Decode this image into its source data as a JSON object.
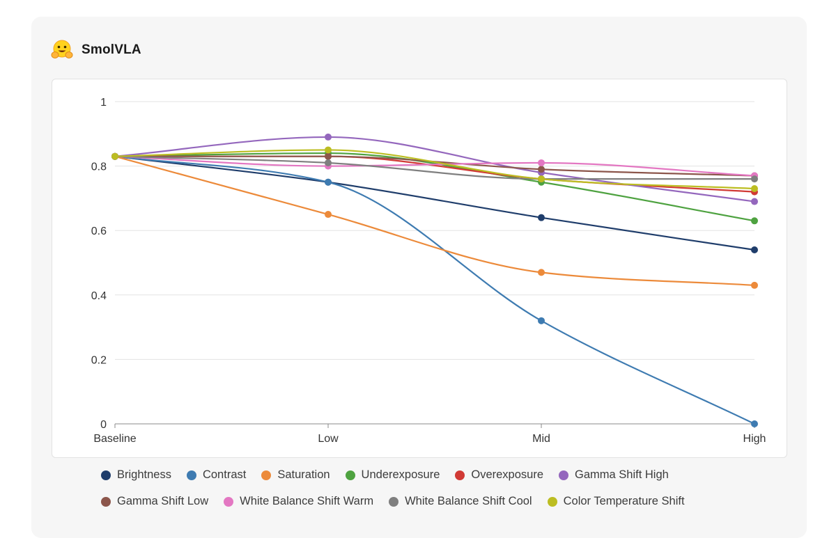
{
  "card": {
    "title": "SmolVLA",
    "logo_icon": "hugging-face-emoji-icon"
  },
  "chart_data": {
    "type": "line",
    "categories": [
      "Baseline",
      "Low",
      "Mid",
      "High"
    ],
    "ylim": [
      0,
      1
    ],
    "yticks": [
      "0",
      "0.2",
      "0.4",
      "0.6",
      "0.8",
      "1"
    ],
    "ytick_values": [
      0,
      0.2,
      0.4,
      0.6,
      0.8,
      1
    ],
    "title": "",
    "xlabel": "",
    "ylabel": "",
    "grid": true,
    "legend_position": "bottom",
    "series": [
      {
        "name": "Brightness",
        "color": "#1f3d6b",
        "values": [
          0.83,
          0.75,
          0.64,
          0.54
        ]
      },
      {
        "name": "Contrast",
        "color": "#3e7bb1",
        "values": [
          0.83,
          0.75,
          0.32,
          0.0
        ]
      },
      {
        "name": "Saturation",
        "color": "#ec8a3a",
        "values": [
          0.83,
          0.65,
          0.47,
          0.43
        ]
      },
      {
        "name": "Underexposure",
        "color": "#4ea240",
        "values": [
          0.83,
          0.84,
          0.75,
          0.63
        ]
      },
      {
        "name": "Overexposure",
        "color": "#d13a35",
        "values": [
          0.83,
          0.83,
          0.76,
          0.72
        ]
      },
      {
        "name": "Gamma Shift High",
        "color": "#9467bd",
        "values": [
          0.83,
          0.89,
          0.78,
          0.69
        ]
      },
      {
        "name": "Gamma Shift Low",
        "color": "#8c564b",
        "values": [
          0.83,
          0.83,
          0.79,
          0.77
        ]
      },
      {
        "name": "White Balance Shift Warm",
        "color": "#e377c2",
        "values": [
          0.83,
          0.8,
          0.81,
          0.77
        ]
      },
      {
        "name": "White Balance Shift Cool",
        "color": "#7f7f7f",
        "values": [
          0.83,
          0.81,
          0.76,
          0.76
        ]
      },
      {
        "name": "Color Temperature Shift",
        "color": "#bcbd22",
        "values": [
          0.83,
          0.85,
          0.76,
          0.73
        ]
      }
    ]
  }
}
